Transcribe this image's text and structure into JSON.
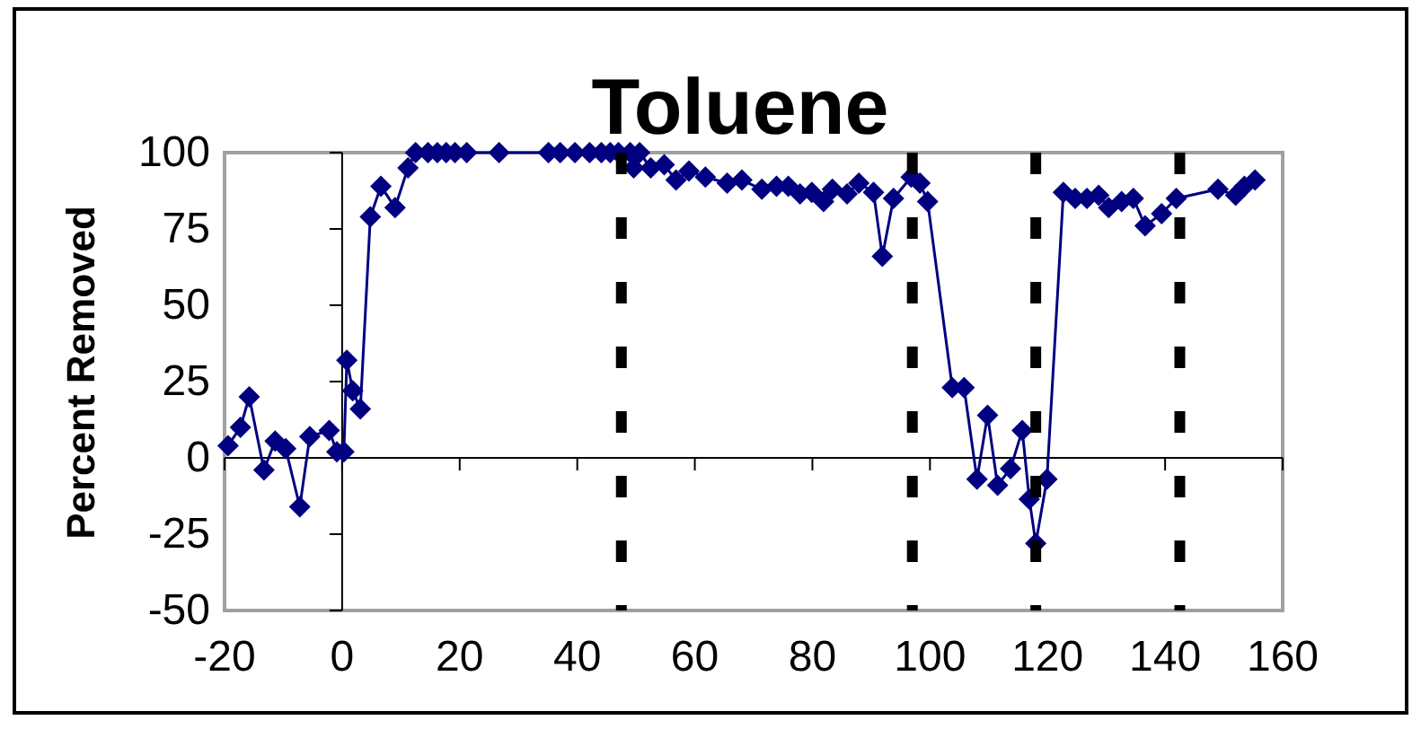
{
  "chart_data": {
    "type": "line",
    "title": "Toluene",
    "ylabel": "Percent Removed",
    "marker": "diamond",
    "line_style": "solid",
    "xlim": [
      -20,
      160
    ],
    "xticks": [
      -20,
      0,
      20,
      40,
      60,
      80,
      100,
      120,
      140,
      160
    ],
    "ylim": [
      -50,
      100
    ],
    "yticks": [
      -50,
      -25,
      0,
      25,
      50,
      75,
      100
    ],
    "series": [
      {
        "color": "#000080",
        "x": [
          -19.4,
          -17.3,
          -15.8,
          -13.3,
          -11.4,
          -9.6,
          -7.2,
          -5.5,
          -2.2,
          -0.9,
          0.3,
          0.8,
          1.8,
          3.1,
          4.8,
          6.6,
          9,
          11.2,
          12.5,
          14.6,
          16.2,
          17.7,
          19.2,
          21.2,
          26.7,
          35.1,
          37.1,
          39.6,
          42.1,
          44.1,
          45.6,
          47,
          49,
          49.6,
          50.6,
          52.5,
          54.8,
          56.8,
          59,
          61.8,
          65.5,
          68,
          71.4,
          73.9,
          75.9,
          77.9,
          79.9,
          81.9,
          83.4,
          85.9,
          87.9,
          90.4,
          91.9,
          93.8,
          96.8,
          98.3,
          99.6,
          103.8,
          105.8,
          108,
          109.8,
          111.5,
          113.7,
          115.7,
          116.9,
          118,
          119.9,
          122.7,
          124.7,
          126.7,
          128.7,
          130.4,
          132.6,
          134.6,
          136.6,
          139.4,
          141.9,
          149,
          152,
          153.5,
          155.3
        ],
        "values": [
          4,
          10,
          20,
          -4,
          5.5,
          3,
          -16,
          7,
          9,
          2,
          2,
          32,
          22,
          16,
          79,
          89,
          82,
          95,
          100,
          100,
          100,
          100,
          100,
          100,
          100,
          100,
          100,
          100,
          100,
          100,
          100,
          100,
          100,
          95,
          100,
          95,
          96,
          91,
          94,
          92,
          90,
          91,
          88,
          89,
          89,
          86.5,
          87,
          84,
          88,
          86.5,
          90,
          87,
          66,
          85,
          92,
          90,
          84,
          23,
          23,
          -7,
          14,
          -9,
          -3.5,
          9,
          -13.5,
          -28,
          -7,
          87,
          85,
          85,
          86,
          82,
          84,
          85,
          76,
          80,
          85,
          88,
          86,
          89,
          91
        ]
      }
    ],
    "ref_lines": [
      {
        "axis": "x",
        "value": 47.5,
        "color": "#000000",
        "line_style": "dashed"
      },
      {
        "axis": "x",
        "value": 97,
        "color": "#000000",
        "line_style": "dashed"
      },
      {
        "axis": "x",
        "value": 118,
        "color": "#000000",
        "line_style": "dashed"
      },
      {
        "axis": "x",
        "value": 142.5,
        "color": "#000000",
        "line_style": "dashed"
      }
    ]
  }
}
